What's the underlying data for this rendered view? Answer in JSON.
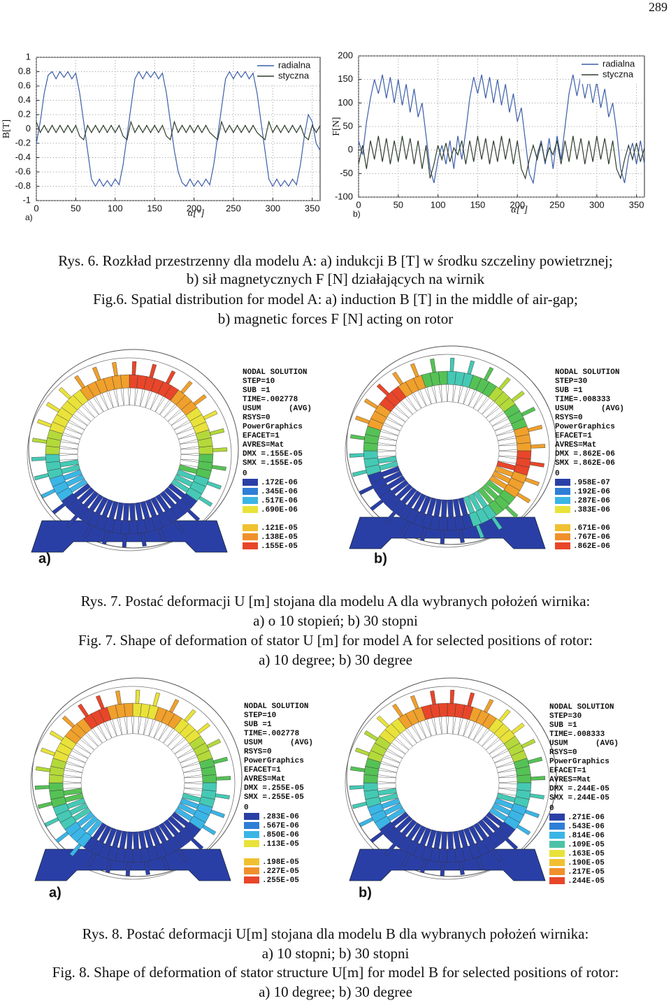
{
  "page_number": "289",
  "chart_data": [
    {
      "type": "line",
      "ylabel": "B[T]",
      "xlabel": "α[°]",
      "panel_label": "a)",
      "x": [
        0,
        5,
        10,
        15,
        20,
        25,
        30,
        35,
        40,
        45,
        50,
        55,
        60,
        65,
        70,
        75,
        80,
        85,
        90,
        95,
        100,
        105,
        110,
        115,
        120,
        125,
        130,
        135,
        140,
        145,
        150,
        155,
        160,
        165,
        170,
        175,
        180,
        185,
        190,
        195,
        200,
        205,
        210,
        215,
        220,
        225,
        230,
        235,
        240,
        245,
        250,
        255,
        260,
        265,
        270,
        275,
        280,
        285,
        290,
        295,
        300,
        305,
        310,
        315,
        320,
        325,
        330,
        335,
        340,
        345,
        350,
        355,
        360
      ],
      "series": [
        {
          "name": "radialna",
          "color": "#3c5ea8",
          "values": [
            -0.2,
            0.1,
            0.5,
            0.75,
            0.8,
            0.7,
            0.8,
            0.72,
            0.8,
            0.7,
            0.78,
            0.5,
            0.1,
            -0.3,
            -0.7,
            -0.8,
            -0.7,
            -0.8,
            -0.72,
            -0.8,
            -0.7,
            -0.78,
            -0.5,
            -0.1,
            0.3,
            0.7,
            0.8,
            0.7,
            0.8,
            0.72,
            0.8,
            0.7,
            0.78,
            0.5,
            0.1,
            -0.3,
            -0.6,
            -0.75,
            -0.8,
            -0.7,
            -0.8,
            -0.72,
            -0.8,
            -0.7,
            -0.78,
            -0.5,
            -0.1,
            0.3,
            0.7,
            0.8,
            0.7,
            0.8,
            0.72,
            0.8,
            0.7,
            0.78,
            0.5,
            0.1,
            -0.3,
            -0.7,
            -0.8,
            -0.7,
            -0.8,
            -0.72,
            -0.8,
            -0.7,
            -0.78,
            -0.5,
            -0.1,
            0.2,
            0.1,
            -0.2,
            -0.3
          ]
        },
        {
          "name": "styczna",
          "color": "#2f3f2f",
          "values": [
            0.1,
            -0.05,
            0.05,
            -0.05,
            0.05,
            -0.05,
            0.05,
            -0.05,
            0.05,
            -0.05,
            0.05,
            -0.1,
            -0.15,
            0.05,
            -0.05,
            0.05,
            -0.05,
            0.05,
            -0.05,
            0.05,
            -0.05,
            0.05,
            -0.1,
            -0.15,
            0.1,
            -0.05,
            0.05,
            -0.05,
            0.05,
            -0.05,
            0.05,
            -0.05,
            0.05,
            -0.1,
            -0.15,
            0.1,
            -0.05,
            0.05,
            -0.05,
            0.05,
            -0.05,
            0.05,
            -0.05,
            0.05,
            -0.05,
            -0.1,
            -0.15,
            0.1,
            -0.05,
            0.05,
            -0.05,
            0.05,
            -0.05,
            0.05,
            -0.05,
            0.05,
            -0.05,
            -0.1,
            -0.15,
            0.1,
            -0.05,
            0.05,
            -0.05,
            0.05,
            -0.05,
            0.05,
            -0.05,
            0.05,
            -0.1,
            -0.15,
            0.05,
            -0.05,
            0.05
          ]
        }
      ],
      "xlim": [
        0,
        360
      ],
      "ylim": [
        -1,
        1
      ],
      "xticks": [
        0,
        50,
        100,
        150,
        200,
        250,
        300,
        350
      ],
      "yticks": [
        -1,
        -0.8,
        -0.6,
        -0.4,
        -0.2,
        0,
        0.2,
        0.4,
        0.6,
        0.8,
        1
      ],
      "grid": true,
      "legend": "upper right"
    },
    {
      "type": "line",
      "ylabel": "F[N]",
      "xlabel": "α[°]",
      "panel_label": "b)",
      "x": [
        0,
        5,
        10,
        15,
        20,
        25,
        30,
        35,
        40,
        45,
        50,
        55,
        60,
        65,
        70,
        75,
        80,
        85,
        90,
        95,
        100,
        105,
        110,
        115,
        120,
        125,
        130,
        135,
        140,
        145,
        150,
        155,
        160,
        165,
        170,
        175,
        180,
        185,
        190,
        195,
        200,
        205,
        210,
        215,
        220,
        225,
        230,
        235,
        240,
        245,
        250,
        255,
        260,
        265,
        270,
        275,
        280,
        285,
        290,
        295,
        300,
        305,
        310,
        315,
        320,
        325,
        330,
        335,
        340,
        345,
        350,
        355,
        360
      ],
      "series": [
        {
          "name": "radialna",
          "color": "#3c5ea8",
          "values": [
            20,
            -10,
            60,
            110,
            150,
            120,
            160,
            110,
            155,
            100,
            150,
            95,
            140,
            80,
            130,
            70,
            100,
            30,
            -40,
            -70,
            -20,
            10,
            -30,
            20,
            -40,
            30,
            -20,
            40,
            110,
            155,
            120,
            160,
            110,
            155,
            100,
            150,
            95,
            140,
            80,
            120,
            60,
            90,
            20,
            -50,
            -70,
            -10,
            20,
            -30,
            25,
            -40,
            30,
            -20,
            50,
            120,
            160,
            115,
            158,
            110,
            150,
            100,
            145,
            90,
            130,
            70,
            100,
            40,
            -40,
            -70,
            -15,
            15,
            -30,
            20,
            -30
          ]
        },
        {
          "name": "styczna",
          "color": "#2f3f2f",
          "values": [
            -30,
            10,
            -40,
            20,
            -20,
            30,
            -25,
            25,
            -30,
            20,
            -25,
            30,
            -20,
            25,
            -30,
            20,
            -40,
            10,
            -60,
            -30,
            10,
            -20,
            15,
            -25,
            5,
            -10,
            20,
            -30,
            20,
            -25,
            30,
            -20,
            25,
            -30,
            20,
            -25,
            30,
            -20,
            25,
            -30,
            20,
            -40,
            -60,
            -20,
            10,
            -20,
            15,
            -25,
            5,
            -10,
            20,
            -30,
            20,
            -25,
            30,
            -20,
            25,
            -30,
            20,
            -25,
            30,
            -20,
            25,
            -30,
            20,
            -40,
            -60,
            -20,
            10,
            -20,
            15,
            -25,
            5
          ]
        }
      ],
      "xlim": [
        0,
        360
      ],
      "ylim": [
        -100,
        200
      ],
      "xticks": [
        0,
        50,
        100,
        150,
        200,
        250,
        300,
        350
      ],
      "yticks": [
        -100,
        -50,
        0,
        50,
        100,
        150,
        200
      ],
      "grid": true,
      "legend": "upper right"
    }
  ],
  "fig6_caption": [
    "Rys. 6. Rozkład przestrzenny dla modelu A: a) indukcji B [T] w środku szczeliny powietrznej;",
    "b) sił magnetycznych F [N] działających na wirnik",
    "Fig.6. Spatial distribution for model A: a) induction B [T] in the middle of air-gap;",
    "b) magnetic forces F [N] acting on rotor"
  ],
  "fig7": {
    "panels": [
      {
        "label": "a)",
        "solution": [
          "NODAL SOLUTION",
          "STEP=10",
          "SUB =1",
          "TIME=.002778",
          "USUM      (AVG)",
          "RSYS=0",
          "PowerGraphics",
          "EFACET=1",
          "AVRES=Mat",
          "DMX =.155E-05",
          "SMX =.155E-05"
        ],
        "contours": [
          "0",
          ".172E-06",
          ".345E-06",
          ".517E-06",
          ".690E-06",
          ".121E-05",
          ".138E-05",
          ".155E-05"
        ]
      },
      {
        "label": "b)",
        "solution": [
          "NODAL SOLUTION",
          "STEP=30",
          "SUB =1",
          "TIME=.008333",
          "USUM      (AVG)",
          "RSYS=0",
          "PowerGraphics",
          "EFACET=1",
          "AVRES=Mat",
          "DMX =.862E-06",
          "SMX =.862E-06"
        ],
        "contours": [
          "0",
          ".958E-07",
          ".192E-06",
          ".287E-06",
          ".383E-06",
          ".671E-06",
          ".767E-06",
          ".862E-06"
        ]
      }
    ],
    "caption": [
      "Rys. 7. Postać deformacji U [m] stojana dla modelu A dla wybranych położeń wirnika:",
      "a) o 10 stopień; b) 30 stopni",
      "Fig. 7. Shape of deformation of stator U [m] for model A for selected positions of rotor:",
      "a) 10 degree; b) 30 degree"
    ]
  },
  "fig8": {
    "panels": [
      {
        "label": "a)",
        "solution": [
          "NODAL SOLUTION",
          "STEP=10",
          "SUB =1",
          "TIME=.002778",
          "USUM      (AVG)",
          "RSYS=0",
          "PowerGraphics",
          "EFACET=1",
          "AVRES=Mat",
          "DMX =.255E-05",
          "SMX =.255E-05"
        ],
        "contours": [
          "0",
          ".283E-06",
          ".567E-06",
          ".850E-06",
          ".113E-05",
          ".198E-05",
          ".227E-05",
          ".255E-05"
        ]
      },
      {
        "label": "b)",
        "solution": [
          "NODAL SOLUTION",
          "STEP=30",
          "SUB =1",
          "TIME=.008333",
          "USUM      (AVG)",
          "RSYS=0",
          "PowerGraphics",
          "EFACET=1",
          "AVRES=Mat",
          "DMX =.244E-05",
          "SMX =.244E-05"
        ],
        "contours": [
          "0",
          ".271E-06",
          ".543E-06",
          ".814E-06",
          ".109E-05",
          ".163E-05",
          ".190E-05",
          ".217E-05",
          ".244E-05"
        ]
      }
    ],
    "caption": [
      "Rys. 8. Postać deformacji U[m] stojana dla modelu B dla wybranych położeń wirnika:",
      "a) 10 stopni; b) 30 stopni",
      "Fig. 8. Shape of deformation of stator structure U[m] for model B for selected positions of rotor:",
      "a) 10 degree; b) 30 degree"
    ]
  }
}
